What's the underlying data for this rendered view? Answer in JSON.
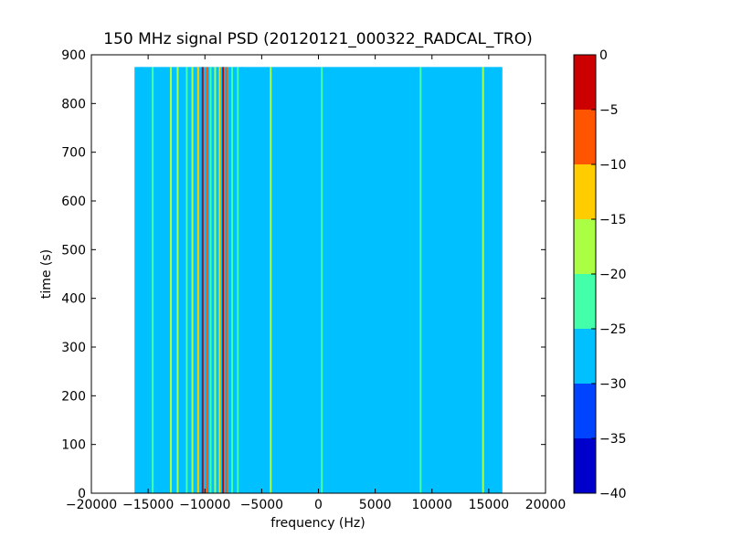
{
  "chart_data": {
    "type": "heatmap",
    "title": "150 MHz signal PSD (20120121_000322_RADCAL_TRO)",
    "xlabel": "frequency (Hz)",
    "ylabel": "time (s)",
    "xlim": [
      -20000,
      20000
    ],
    "ylim": [
      0,
      900
    ],
    "xticks": [
      -20000,
      -15000,
      -10000,
      -5000,
      0,
      5000,
      10000,
      15000,
      20000
    ],
    "xtick_labels": [
      "−20000",
      "−15000",
      "−10000",
      "−5000",
      "0",
      "5000",
      "10000",
      "15000",
      "20000"
    ],
    "yticks": [
      0,
      100,
      200,
      300,
      400,
      500,
      600,
      700,
      800,
      900
    ],
    "ytick_labels": [
      "0",
      "100",
      "200",
      "300",
      "400",
      "500",
      "600",
      "700",
      "800",
      "900"
    ],
    "data_extent": {
      "x": [
        -16200,
        16200
      ],
      "y": [
        0,
        875
      ]
    },
    "background_level": -27.5,
    "spectral_lines": [
      {
        "x": -15600,
        "level": -27.5
      },
      {
        "x": -14600,
        "level": -22.5
      },
      {
        "x": -13000,
        "level": -17.5
      },
      {
        "x": -12400,
        "level": -17.5
      },
      {
        "x": -11600,
        "level": -22.5
      },
      {
        "x": -11100,
        "level": -17.5
      },
      {
        "x": -10600,
        "level": -12.5
      },
      {
        "x": -10200,
        "level": -2.5
      },
      {
        "x": -9800,
        "level": -7.5
      },
      {
        "x": -9500,
        "level": -22.5
      },
      {
        "x": -9100,
        "level": -17.5
      },
      {
        "x": -8700,
        "level": -12.5
      },
      {
        "x": -8400,
        "level": -2.5
      },
      {
        "x": -8100,
        "level": -7.5
      },
      {
        "x": -7600,
        "level": -22.5
      },
      {
        "x": -7100,
        "level": -22.5
      },
      {
        "x": -6700,
        "level": -27.5
      },
      {
        "x": -4200,
        "level": -17.5
      },
      {
        "x": 300,
        "level": -22.5
      },
      {
        "x": 9000,
        "level": -22.5
      },
      {
        "x": 9600,
        "level": -27.5
      },
      {
        "x": 14500,
        "level": -17.5
      }
    ],
    "colorbar": {
      "levels": [
        -40,
        -35,
        -30,
        -25,
        -20,
        -15,
        -10,
        -5,
        0
      ],
      "tick_labels": [
        "−40",
        "−35",
        "−30",
        "−25",
        "−20",
        "−15",
        "−10",
        "−5",
        "0"
      ],
      "colors": [
        "#0000cc",
        "#0044ff",
        "#00c0ff",
        "#44ffaa",
        "#aaff44",
        "#ffcc00",
        "#ff5500",
        "#cc0000"
      ]
    }
  }
}
